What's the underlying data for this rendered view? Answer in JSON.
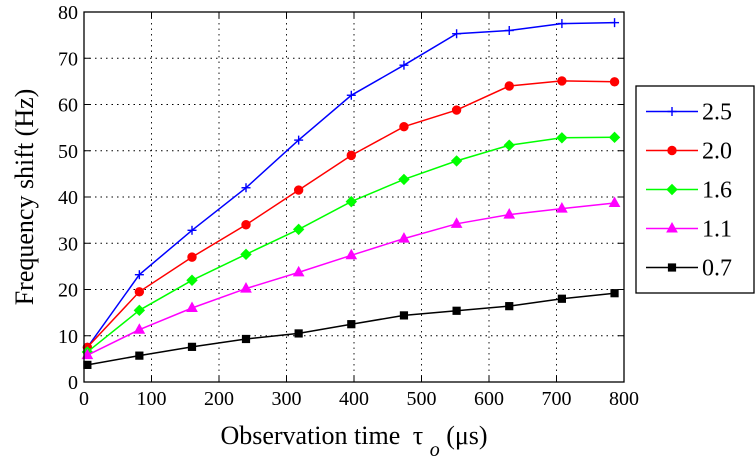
{
  "chart_data": {
    "type": "line",
    "xlabel": "Observation time",
    "xlabel_symbol": "τ",
    "xlabel_subscript": "o",
    "xlabel_unit": "(μs)",
    "ylabel": "Frequency shift (Hz)",
    "xlim": [
      0,
      800
    ],
    "ylim": [
      0,
      80
    ],
    "xticks": [
      "0",
      "100",
      "200",
      "300",
      "400",
      "500",
      "600",
      "700",
      "800"
    ],
    "yticks": [
      "0",
      "10",
      "20",
      "30",
      "40",
      "50",
      "60",
      "70",
      "80"
    ],
    "grid": true,
    "legend_placement": "outside-right",
    "x": [
      5,
      82,
      160,
      240,
      318,
      396,
      474,
      552,
      630,
      708,
      786
    ],
    "series": [
      {
        "name": "2.5",
        "color": "#0000ff",
        "marker": "plus",
        "values": [
          7.5,
          23.2,
          32.8,
          42.0,
          52.3,
          62.0,
          68.5,
          75.3,
          76.0,
          77.5,
          77.7
        ]
      },
      {
        "name": "2.0",
        "color": "#ff0000",
        "marker": "circle",
        "values": [
          7.5,
          19.5,
          27.0,
          34.0,
          41.5,
          49.0,
          55.2,
          58.8,
          64.0,
          65.1,
          64.9
        ]
      },
      {
        "name": "1.6",
        "color": "#00ff00",
        "marker": "diamond",
        "values": [
          6.5,
          15.5,
          22.0,
          27.6,
          33.0,
          39.0,
          43.8,
          47.8,
          51.2,
          52.8,
          52.9
        ]
      },
      {
        "name": "1.1",
        "color": "#ff00ff",
        "marker": "triangle",
        "values": [
          5.8,
          11.3,
          16.0,
          20.2,
          23.7,
          27.4,
          31.0,
          34.2,
          36.2,
          37.5,
          38.7
        ]
      },
      {
        "name": "0.7",
        "color": "#000000",
        "marker": "square",
        "values": [
          3.7,
          5.7,
          7.6,
          9.3,
          10.5,
          12.5,
          14.4,
          15.4,
          16.4,
          18.0,
          19.2
        ]
      }
    ]
  }
}
